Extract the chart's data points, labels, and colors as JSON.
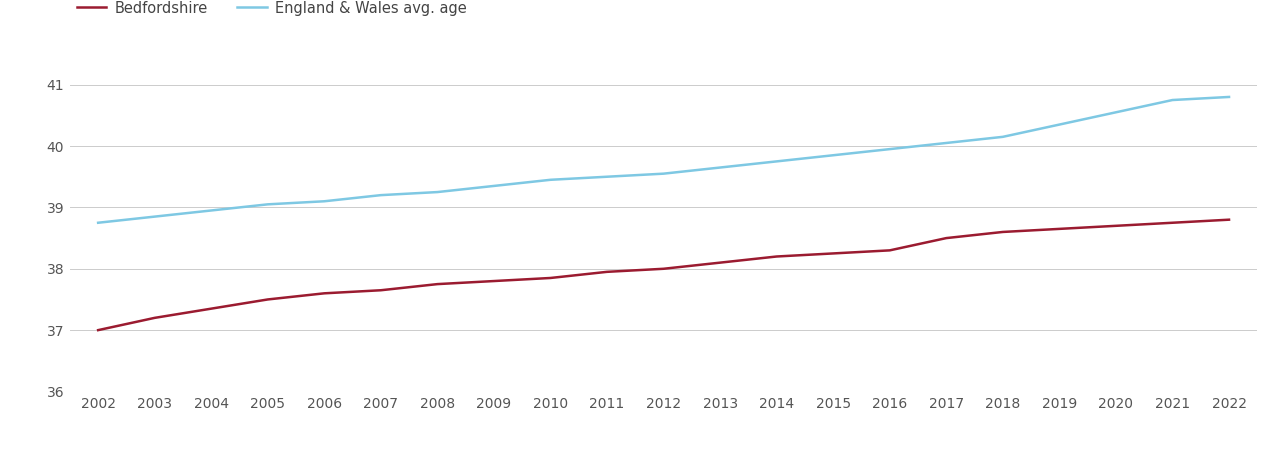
{
  "years": [
    2002,
    2003,
    2004,
    2005,
    2006,
    2007,
    2008,
    2009,
    2010,
    2011,
    2012,
    2013,
    2014,
    2015,
    2016,
    2017,
    2018,
    2019,
    2020,
    2021,
    2022
  ],
  "bedfordshire": [
    37.0,
    37.2,
    37.35,
    37.5,
    37.6,
    37.65,
    37.75,
    37.8,
    37.85,
    37.95,
    38.0,
    38.1,
    38.2,
    38.25,
    38.3,
    38.5,
    38.6,
    38.65,
    38.7,
    38.75,
    38.8
  ],
  "england_wales": [
    38.75,
    38.85,
    38.95,
    39.05,
    39.1,
    39.2,
    39.25,
    39.35,
    39.45,
    39.5,
    39.55,
    39.65,
    39.75,
    39.85,
    39.95,
    40.05,
    40.15,
    40.35,
    40.55,
    40.75,
    40.8
  ],
  "bedfordshire_color": "#9b1b30",
  "england_wales_color": "#7ec8e3",
  "background_color": "#ffffff",
  "grid_color": "#cccccc",
  "legend_bedfordshire": "Bedfordshire",
  "legend_england_wales": "England & Wales avg. age",
  "ylim": [
    36,
    41.5
  ],
  "yticks": [
    36,
    37,
    38,
    39,
    40,
    41
  ],
  "xlim": [
    2001.5,
    2022.5
  ],
  "line_width": 1.8,
  "tick_fontsize": 10,
  "legend_fontsize": 10.5
}
